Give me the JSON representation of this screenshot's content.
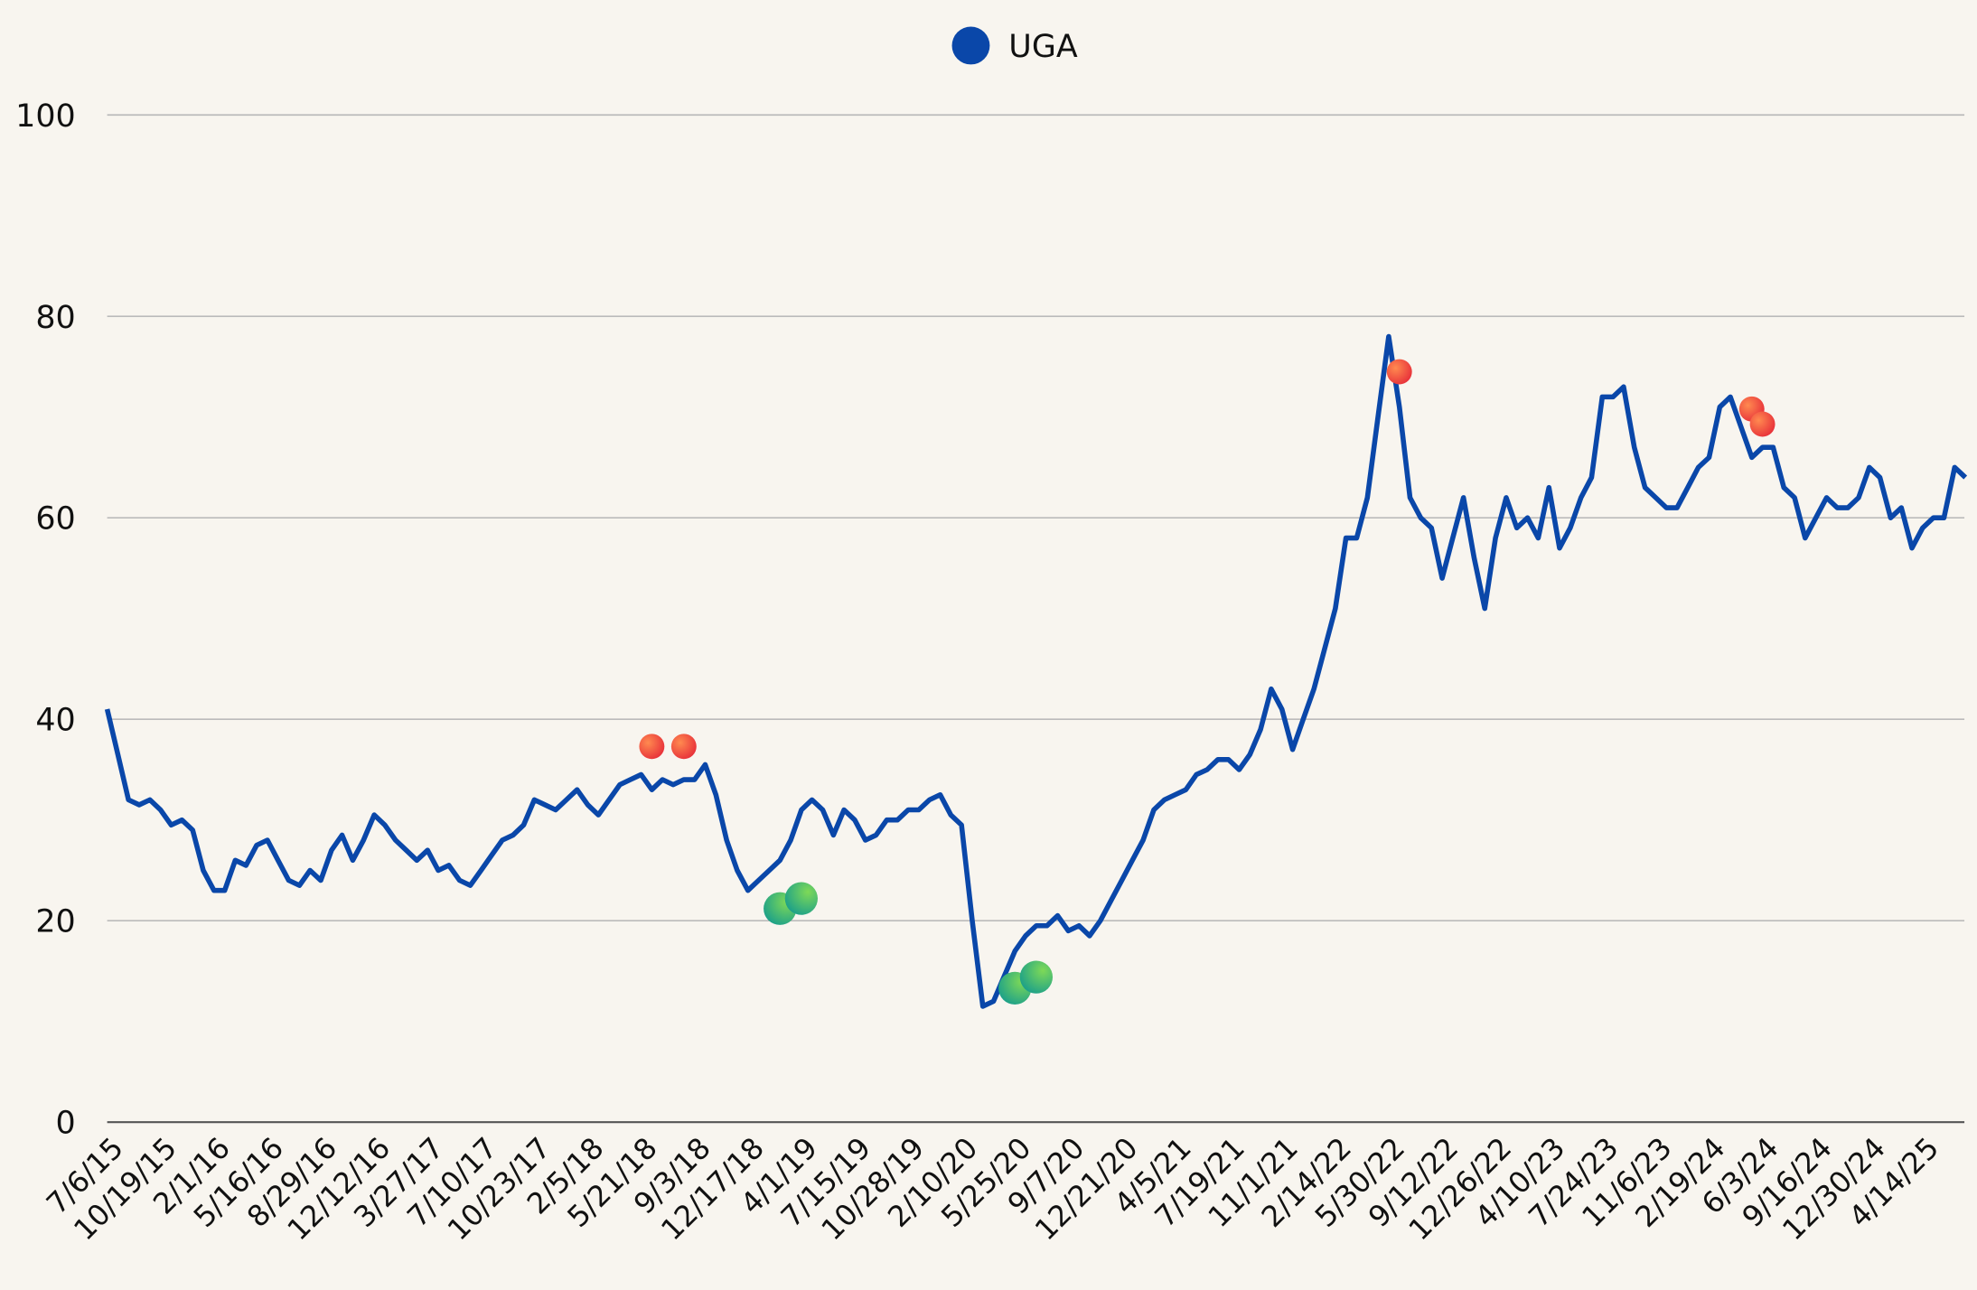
{
  "chart_data": {
    "type": "line",
    "categories": [
      "7/6/15",
      null,
      null,
      null,
      null,
      "10/19/15",
      null,
      null,
      null,
      null,
      "2/1/16",
      null,
      null,
      null,
      null,
      "5/16/16",
      null,
      null,
      null,
      null,
      "8/29/16",
      null,
      null,
      null,
      null,
      "12/12/16",
      null,
      null,
      null,
      null,
      "3/27/17",
      null,
      null,
      null,
      null,
      "7/10/17",
      null,
      null,
      null,
      null,
      "10/23/17",
      null,
      null,
      null,
      null,
      "2/5/18",
      null,
      null,
      null,
      null,
      "5/21/18",
      null,
      null,
      null,
      null,
      "9/3/18",
      null,
      null,
      null,
      null,
      "12/17/18",
      null,
      null,
      null,
      null,
      "4/1/19",
      null,
      null,
      null,
      null,
      "7/15/19",
      null,
      null,
      null,
      null,
      "10/28/19",
      null,
      null,
      null,
      null,
      "2/10/20",
      null,
      null,
      null,
      null,
      "5/25/20",
      null,
      null,
      null,
      null,
      "9/7/20",
      null,
      null,
      null,
      null,
      "12/21/20",
      null,
      null,
      null,
      null,
      "4/5/21",
      null,
      null,
      null,
      null,
      "7/19/21",
      null,
      null,
      null,
      null,
      "11/1/21",
      null,
      null,
      null,
      null,
      "2/14/22",
      null,
      null,
      null,
      null,
      "5/30/22",
      null,
      null,
      null,
      null,
      "9/12/22",
      null,
      null,
      null,
      null,
      "12/26/22",
      null,
      null,
      null,
      null,
      "4/10/23",
      null,
      null,
      null,
      null,
      "7/24/23",
      null,
      null,
      null,
      null,
      "11/6/23",
      null,
      null,
      null,
      null,
      "2/19/24",
      null,
      null,
      null,
      null,
      "6/3/24",
      null,
      null,
      null,
      null,
      "9/16/24",
      null,
      null,
      null,
      null,
      "12/30/24",
      null,
      null,
      null,
      null,
      "4/14/25",
      null,
      null,
      null,
      null
    ],
    "series": [
      {
        "name": "UGA",
        "color": "#0a47a9",
        "values": [
          41,
          36.5,
          32,
          31.5,
          32,
          31,
          29.5,
          30,
          29,
          25,
          23,
          23,
          26,
          25.5,
          27.5,
          28,
          26,
          24,
          23.5,
          25,
          24,
          27,
          28.5,
          26,
          28,
          30.5,
          29.5,
          28,
          27,
          26,
          27,
          25,
          25.5,
          24,
          23.5,
          25,
          26.5,
          28,
          28.5,
          29.5,
          32,
          31.5,
          31,
          32,
          33,
          31.5,
          30.5,
          32,
          33.5,
          34,
          34.5,
          33,
          34,
          33.5,
          34,
          34,
          35.5,
          32.5,
          28,
          25,
          23,
          24,
          25,
          26,
          28,
          31,
          32,
          31,
          28.5,
          31,
          30,
          28,
          28.5,
          30,
          30,
          31,
          31,
          32,
          32.5,
          30.5,
          29.5,
          20,
          11.5,
          12,
          14.5,
          17,
          18.5,
          19.5,
          19.5,
          20.5,
          19,
          19.5,
          18.5,
          20,
          22,
          24,
          26,
          28,
          31,
          32,
          32.5,
          33,
          34.5,
          35,
          36,
          36,
          35,
          36.5,
          39,
          43,
          41,
          37,
          40,
          43,
          47,
          51,
          58,
          58,
          62,
          70,
          78,
          71,
          62,
          60,
          59,
          54,
          58,
          62,
          56,
          51,
          58,
          62,
          59,
          60,
          58,
          63,
          57,
          59,
          62,
          64,
          72,
          72,
          73,
          67,
          63,
          62,
          61,
          61,
          63,
          65,
          66,
          71,
          72,
          69,
          66,
          67,
          67,
          63,
          62,
          58,
          60,
          62,
          61,
          61,
          62,
          65,
          64,
          60,
          61,
          57,
          59,
          60,
          60,
          65,
          64
        ]
      }
    ],
    "markers": [
      {
        "color": "#f0503a",
        "x": [
          51,
          54,
          121,
          154,
          155
        ],
        "values": [
          37.3,
          37.3,
          74.5,
          70.8,
          69.3
        ]
      },
      {
        "color": "#2bb07a",
        "x": [
          63,
          65,
          85,
          87
        ],
        "values": [
          21.2,
          22.2,
          13.3,
          14.4
        ]
      }
    ],
    "ylim": [
      0,
      100
    ],
    "yticks": [
      0,
      20,
      40,
      60,
      80,
      100
    ],
    "grid": true,
    "legend": "top"
  }
}
